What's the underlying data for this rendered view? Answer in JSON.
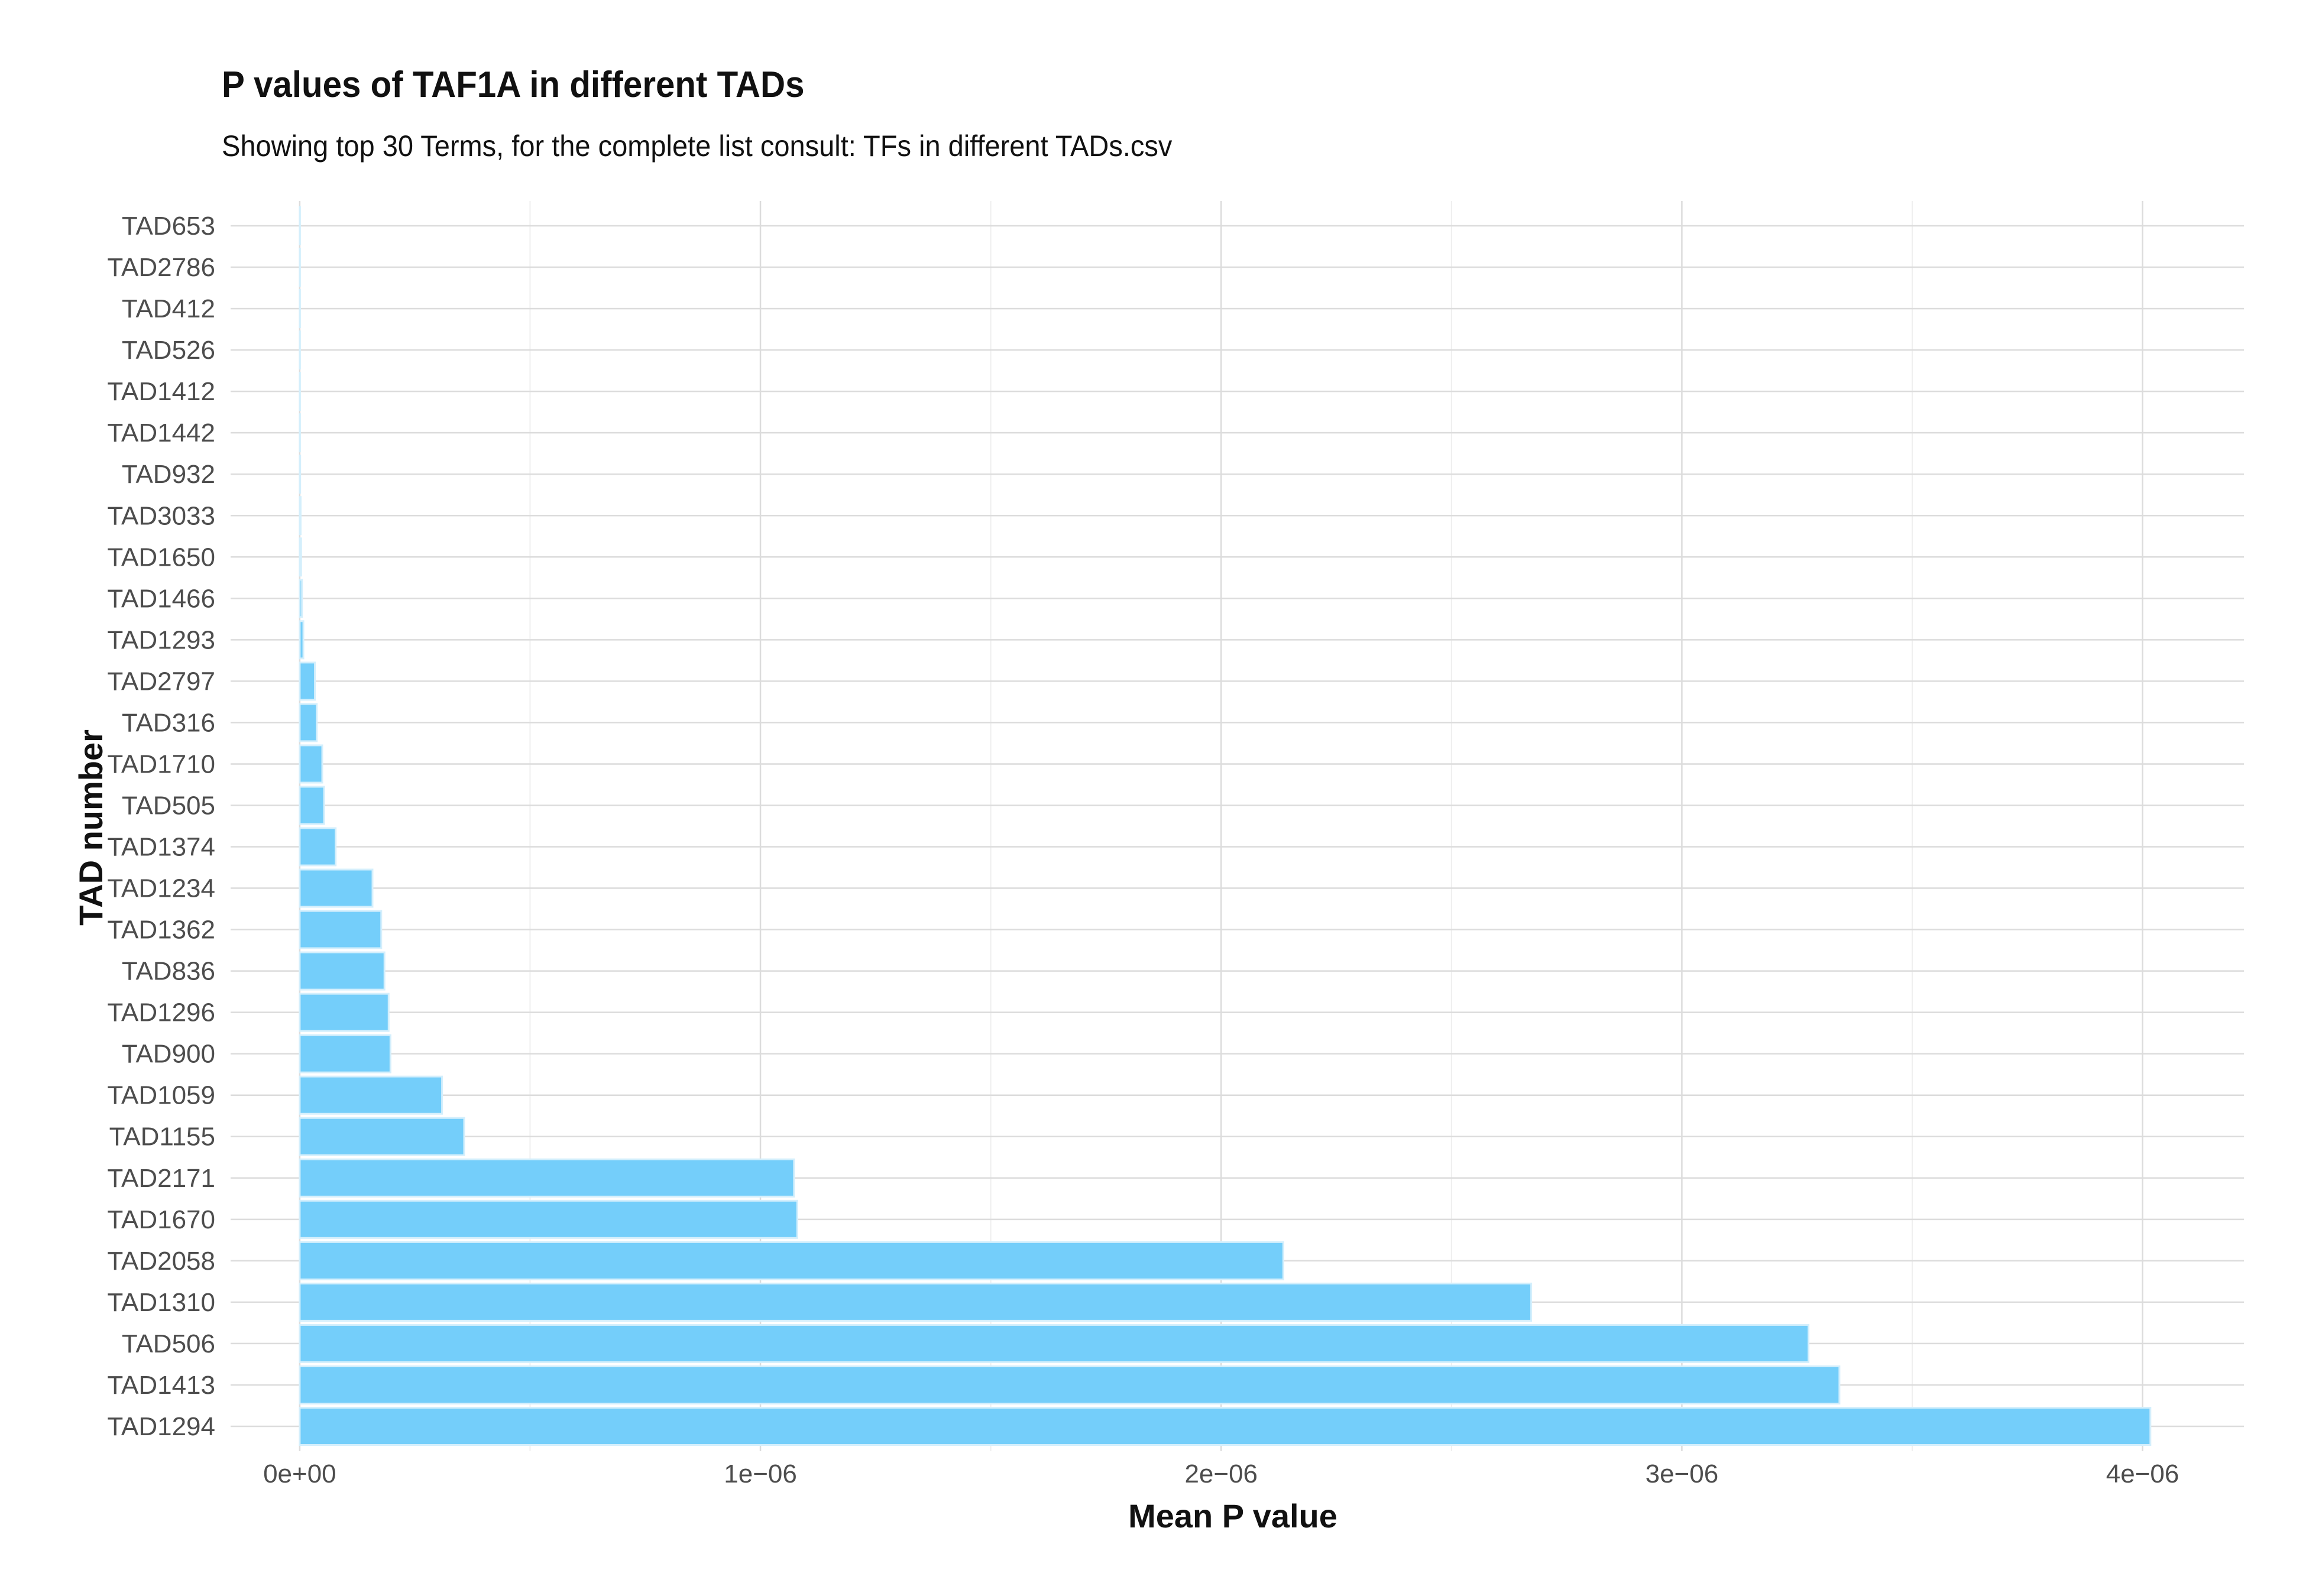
{
  "chart_data": {
    "type": "bar",
    "orientation": "horizontal",
    "title": "P values of TAF1A in different TADs",
    "subtitle": "Showing top 30 Terms, for the complete list consult: TFs in different TADs.csv",
    "xlabel": "Mean P value",
    "ylabel": "TAD number",
    "xlim": [
      -1.5e-07,
      4.22e-06
    ],
    "x_ticks": [
      0,
      1e-06,
      2e-06,
      3e-06,
      4e-06
    ],
    "x_tick_labels": [
      "0e+00",
      "1e−06",
      "2e−06",
      "3e−06",
      "4e−06"
    ],
    "categories": [
      "TAD653",
      "TAD2786",
      "TAD412",
      "TAD526",
      "TAD1412",
      "TAD1442",
      "TAD932",
      "TAD3033",
      "TAD1650",
      "TAD1466",
      "TAD1293",
      "TAD2797",
      "TAD316",
      "TAD1710",
      "TAD505",
      "TAD1374",
      "TAD1234",
      "TAD1362",
      "TAD836",
      "TAD1296",
      "TAD900",
      "TAD1059",
      "TAD1155",
      "TAD2171",
      "TAD1670",
      "TAD2058",
      "TAD1310",
      "TAD506",
      "TAD1413",
      "TAD1294"
    ],
    "values": [
      1e-11,
      2e-11,
      5e-11,
      1e-10,
      2e-10,
      5e-10,
      1e-09,
      2e-09,
      3e-09,
      5e-09,
      8e-09,
      3.3e-08,
      3.7e-08,
      4.9e-08,
      5.3e-08,
      7.8e-08,
      1.58e-07,
      1.77e-07,
      1.84e-07,
      1.93e-07,
      1.97e-07,
      3.09e-07,
      3.57e-07,
      1.073e-06,
      1.08e-06,
      2.135e-06,
      2.673e-06,
      3.275e-06,
      3.342e-06,
      4.017e-06
    ],
    "grid": true,
    "legend": "none",
    "colors": {
      "bar_fill": "#74CEFA",
      "bar_stroke": "#D4EFFC",
      "grid_major": "#DCDCDC",
      "grid_minor": "#EFEFEF",
      "text": "#111111",
      "tick_text": "#4D4D4D"
    }
  }
}
